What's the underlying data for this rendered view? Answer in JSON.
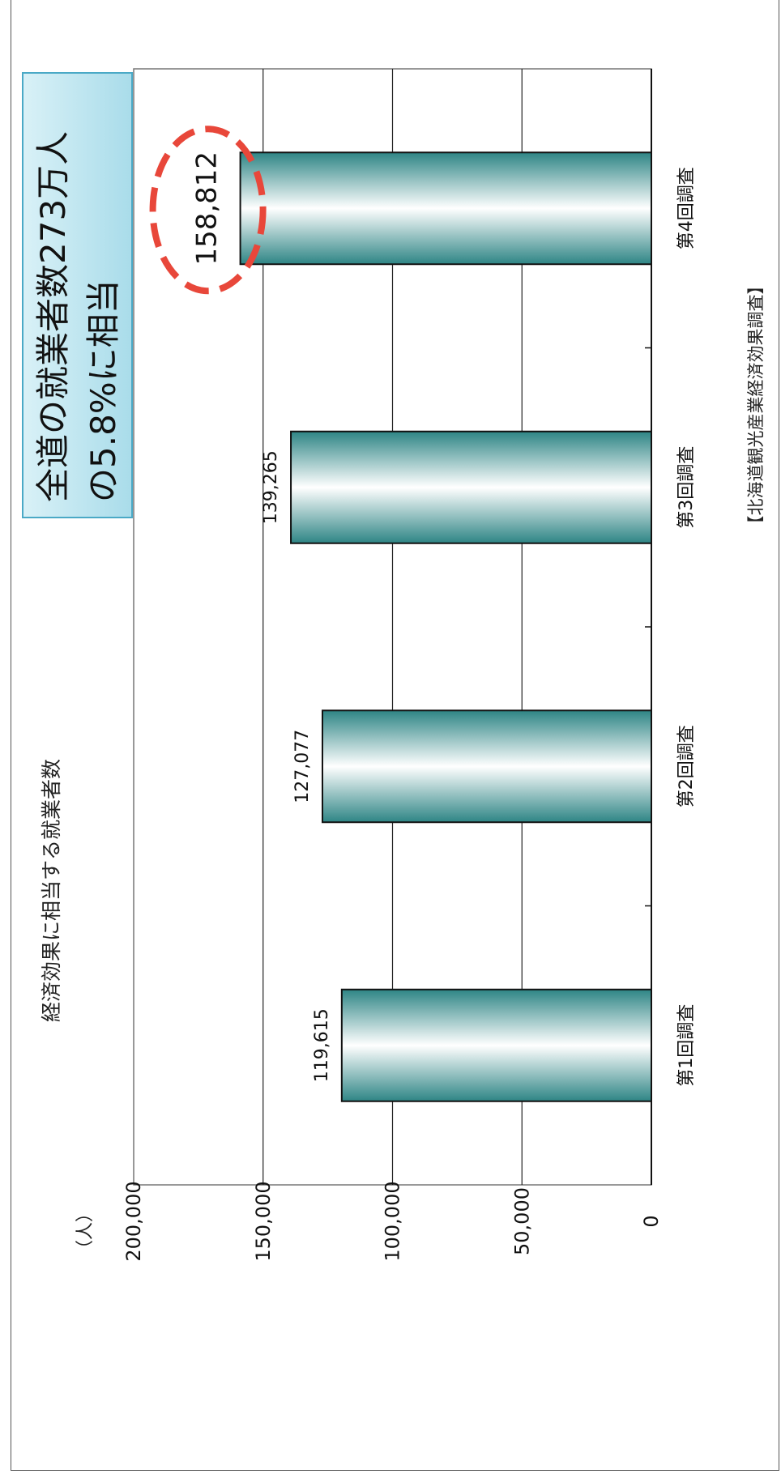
{
  "chart_data": {
    "type": "bar",
    "title": "経済効果に相当する就業者数",
    "ylabel": "（人）",
    "categories": [
      "第1回調査",
      "第2回調査",
      "第3回調査",
      "第4回調査"
    ],
    "values": [
      119615,
      127077,
      139265,
      158812
    ],
    "value_labels": [
      "119,615",
      "127,077",
      "139,265",
      "158,812"
    ],
    "ylim": [
      0,
      200000
    ],
    "yticks": [
      0,
      50000,
      100000,
      150000,
      200000
    ],
    "ytick_labels": [
      "0",
      "50,000",
      "100,000",
      "150,000",
      "200,000"
    ],
    "grid": true,
    "orientation": "rotated",
    "highlight_index": 3,
    "callout": {
      "line1": "全道の就業者数273万人",
      "line2": "の5.8%に相当"
    },
    "source": "【北海道観光産業経済効果調査】"
  },
  "colors": {
    "bar_dark": "#2e8585",
    "bar_light": "#ffffff",
    "highlight_ring": "#e8473a",
    "callout_bg": "#bfe6f0",
    "callout_border": "#4aa9c6"
  }
}
